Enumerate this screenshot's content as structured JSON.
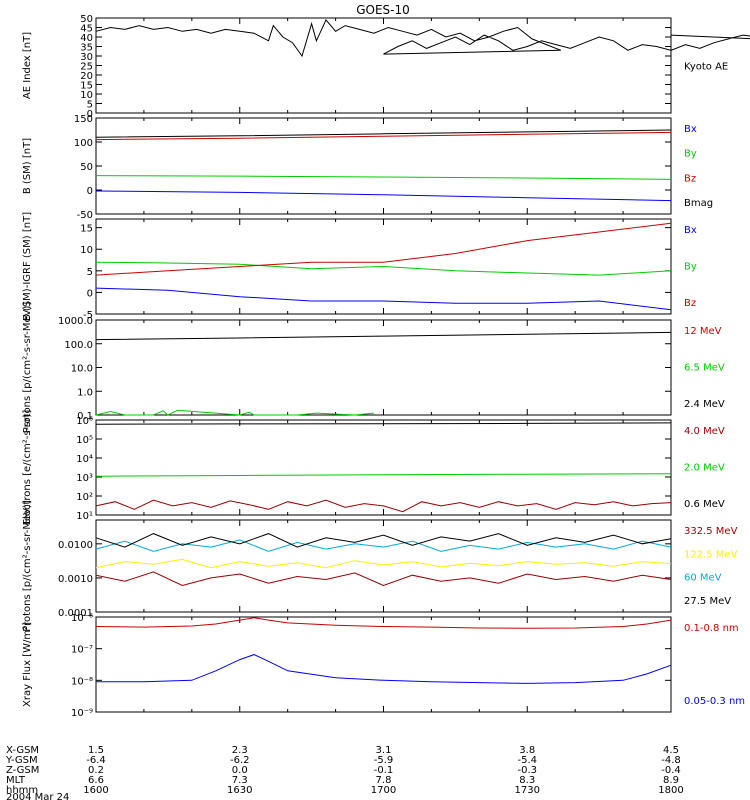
{
  "title": "GOES-10",
  "colors": {
    "black": "#000000",
    "blue": "#0000ff",
    "green": "#00cc00",
    "red": "#cc0000",
    "darkred": "#990000",
    "cyan": "#00aadd",
    "yellow": "#ffee00",
    "frame": "#000000"
  },
  "chart_data": [
    {
      "type": "line",
      "ylabel": "AE Index [nT]",
      "ylim": [
        0,
        50
      ],
      "scale": "linear",
      "yticks": [
        0,
        5,
        10,
        15,
        20,
        25,
        30,
        35,
        40,
        45,
        50
      ],
      "ytick_labels": [
        "0",
        "5",
        "10",
        "15",
        "20",
        "25",
        "30",
        "35",
        "40",
        "45",
        "50"
      ],
      "series": [
        {
          "name": "Kyoto AE",
          "color": "#000000",
          "x": [
            1600,
            1603,
            1606,
            1609,
            1612,
            1615,
            1618,
            1621,
            1624,
            1627,
            1630,
            1633,
            1636,
            1637,
            1639,
            1641,
            1643,
            1645,
            1646,
            1648,
            1650,
            1652,
            1655,
            1658,
            1661,
            1664,
            1667,
            1670,
            1673,
            1676,
            1679,
            1682,
            1685,
            1688,
            1691,
            1694,
            1697,
            1700,
            1703,
            1706,
            1709,
            1712,
            1715,
            1718,
            1721,
            1724,
            1727,
            1730,
            1733,
            1736,
            1739,
            1742,
            1745,
            1748,
            1751,
            1754,
            1757,
            1760,
            1763,
            1766,
            1769,
            1772,
            1775,
            1778,
            1781,
            1784,
            1787,
            1790,
            1793,
            1796,
            1800
          ],
          "y": [
            43,
            45,
            44,
            46,
            44,
            45,
            43,
            44,
            42,
            44,
            43,
            42,
            38,
            46,
            40,
            37,
            30,
            47,
            38,
            49,
            43,
            46,
            44,
            42,
            45,
            43,
            41,
            44,
            40,
            42,
            38,
            40,
            43,
            45,
            39,
            36,
            33,
            31,
            35,
            38,
            34,
            37,
            40,
            36,
            41,
            38,
            33,
            35,
            38,
            36,
            34,
            37,
            40,
            38,
            33,
            36,
            35,
            33,
            36,
            34,
            37,
            39,
            41,
            40,
            42,
            43,
            41,
            38,
            39,
            37,
            41
          ]
        }
      ]
    },
    {
      "type": "line",
      "ylabel": "B (SM) [nT]",
      "ylim": [
        -50,
        150
      ],
      "scale": "linear",
      "yticks": [
        -50,
        0,
        50,
        100,
        150
      ],
      "ytick_labels": [
        "-50",
        "0",
        "50",
        "100",
        "150"
      ],
      "series": [
        {
          "name": "Bx",
          "color": "#0000ff",
          "x": [
            1600,
            1630,
            1700,
            1730,
            1800
          ],
          "y": [
            -2,
            -5,
            -10,
            -16,
            -22
          ]
        },
        {
          "name": "By",
          "color": "#00cc00",
          "x": [
            1600,
            1630,
            1700,
            1730,
            1800
          ],
          "y": [
            30,
            29,
            27,
            25,
            22
          ]
        },
        {
          "name": "Bz",
          "color": "#cc0000",
          "x": [
            1600,
            1630,
            1700,
            1730,
            1800
          ],
          "y": [
            105,
            108,
            112,
            116,
            120
          ]
        },
        {
          "name": "Bmag",
          "color": "#000000",
          "x": [
            1600,
            1630,
            1700,
            1730,
            1800
          ],
          "y": [
            110,
            113,
            117,
            121,
            125
          ]
        }
      ]
    },
    {
      "type": "line",
      "ylabel": "B (SM)-IGRF (SM) [nT]",
      "ylim": [
        -5,
        17
      ],
      "scale": "linear",
      "yticks": [
        -5,
        0,
        5,
        10,
        15
      ],
      "ytick_labels": [
        "-5",
        "0",
        "5",
        "10",
        "15"
      ],
      "series": [
        {
          "name": "Bx",
          "color": "#0000ff",
          "x": [
            1600,
            1615,
            1630,
            1645,
            1700,
            1715,
            1730,
            1745,
            1800
          ],
          "y": [
            1,
            0.5,
            -1,
            -2,
            -2,
            -2.5,
            -2.5,
            -2,
            -4
          ]
        },
        {
          "name": "By",
          "color": "#00cc00",
          "x": [
            1600,
            1615,
            1630,
            1645,
            1700,
            1715,
            1730,
            1745,
            1800
          ],
          "y": [
            7,
            6.8,
            6.5,
            5.5,
            6,
            5,
            4.5,
            4,
            5
          ]
        },
        {
          "name": "Bz",
          "color": "#cc0000",
          "x": [
            1600,
            1615,
            1630,
            1645,
            1700,
            1715,
            1730,
            1745,
            1800
          ],
          "y": [
            4,
            5,
            6,
            7,
            7,
            9,
            12,
            14,
            16
          ]
        }
      ]
    },
    {
      "type": "line",
      "ylabel": "Protons [p/(cm²-s-sr-MeV)]",
      "ylim": [
        0.1,
        1000
      ],
      "scale": "log",
      "yticks": [
        0.1,
        1,
        10,
        100,
        1000
      ],
      "ytick_labels": [
        "0.1",
        "1.0",
        "10.0",
        "100.0",
        "1000.0"
      ],
      "series": [
        {
          "name": "12 MeV",
          "color": "#cc0000",
          "x": [],
          "y": []
        },
        {
          "name": "6.5 MeV",
          "color": "#00cc00",
          "x": [
            1600,
            1603,
            1606,
            1609,
            1612,
            1614,
            1615,
            1617,
            1630,
            1632,
            1633,
            1642,
            1646,
            1654,
            1658
          ],
          "y": [
            0.1,
            0.14,
            0.1,
            0.1,
            0.1,
            0.15,
            0.1,
            0.16,
            0.1,
            0.13,
            0.1,
            0.1,
            0.12,
            0.1,
            0.12
          ]
        },
        {
          "name": "2.4 MeV",
          "color": "#000000",
          "x": [
            1600,
            1630,
            1700,
            1730,
            1800
          ],
          "y": [
            150,
            175,
            210,
            250,
            300
          ]
        }
      ]
    },
    {
      "type": "line",
      "ylabel": "Electrons [e/(cm²-s-sr)]",
      "ylim": [
        10,
        1000000
      ],
      "scale": "log",
      "yticks": [
        10,
        100,
        1000,
        10000,
        100000,
        1000000
      ],
      "ytick_labels": [
        "10¹",
        "10²",
        "10³",
        "10⁴",
        "10⁵",
        "10⁶"
      ],
      "series": [
        {
          "name": "4.0 MeV",
          "color": "#990000",
          "x": [
            1600,
            1604,
            1608,
            1612,
            1616,
            1620,
            1624,
            1628,
            1632,
            1636,
            1640,
            1644,
            1648,
            1652,
            1656,
            1700,
            1704,
            1708,
            1712,
            1716,
            1720,
            1724,
            1728,
            1732,
            1736,
            1740,
            1744,
            1748,
            1752,
            1756,
            1800
          ],
          "y": [
            30,
            50,
            20,
            60,
            30,
            45,
            25,
            55,
            35,
            20,
            50,
            30,
            60,
            25,
            40,
            30,
            15,
            50,
            30,
            45,
            25,
            50,
            30,
            40,
            20,
            45,
            35,
            50,
            30,
            40,
            45
          ]
        },
        {
          "name": "2.0 MeV",
          "color": "#00cc00",
          "x": [
            1600,
            1630,
            1700,
            1730,
            1800
          ],
          "y": [
            1100,
            1200,
            1300,
            1400,
            1500
          ]
        },
        {
          "name": "0.6 MeV",
          "color": "#000000",
          "x": [
            1600,
            1630,
            1700,
            1730,
            1800
          ],
          "y": [
            600000,
            620000,
            640000,
            660000,
            700000
          ]
        }
      ]
    },
    {
      "type": "line",
      "ylabel": "Protons [p/(cm²-s-sr-MeV)]",
      "ylim": [
        0.0001,
        0.05
      ],
      "scale": "log",
      "yticks": [
        0.0001,
        0.001,
        0.01
      ],
      "ytick_labels": [
        "0.0001",
        "0.0010",
        "0.0100"
      ],
      "series": [
        {
          "name": "332.5 MeV",
          "color": "#990000",
          "x": [
            1600,
            1606,
            1612,
            1618,
            1624,
            1630,
            1636,
            1642,
            1648,
            1654,
            1700,
            1706,
            1712,
            1718,
            1724,
            1730,
            1736,
            1742,
            1748,
            1754,
            1800
          ],
          "y": [
            0.0012,
            0.0008,
            0.0015,
            0.0006,
            0.001,
            0.0013,
            0.0007,
            0.0011,
            0.0009,
            0.0014,
            0.0006,
            0.0012,
            0.0008,
            0.001,
            0.0007,
            0.0013,
            0.0009,
            0.0011,
            0.0008,
            0.0012,
            0.0009
          ]
        },
        {
          "name": "122.5 MeV",
          "color": "#ffee00",
          "x": [
            1600,
            1606,
            1612,
            1618,
            1624,
            1630,
            1636,
            1642,
            1648,
            1654,
            1700,
            1706,
            1712,
            1718,
            1724,
            1730,
            1736,
            1742,
            1748,
            1754,
            1800
          ],
          "y": [
            0.002,
            0.003,
            0.0025,
            0.0035,
            0.002,
            0.003,
            0.0022,
            0.0028,
            0.002,
            0.0032,
            0.0024,
            0.003,
            0.0021,
            0.0027,
            0.0023,
            0.003,
            0.0025,
            0.0028,
            0.0022,
            0.003,
            0.0026
          ]
        },
        {
          "name": "60 MeV",
          "color": "#00aadd",
          "x": [
            1600,
            1606,
            1612,
            1618,
            1624,
            1630,
            1636,
            1642,
            1648,
            1654,
            1700,
            1706,
            1712,
            1718,
            1724,
            1730,
            1736,
            1742,
            1748,
            1754,
            1800
          ],
          "y": [
            0.007,
            0.012,
            0.006,
            0.01,
            0.008,
            0.013,
            0.006,
            0.011,
            0.007,
            0.01,
            0.008,
            0.012,
            0.006,
            0.009,
            0.007,
            0.011,
            0.008,
            0.01,
            0.007,
            0.012,
            0.008
          ]
        },
        {
          "name": "27.5 MeV",
          "color": "#000000",
          "x": [
            1600,
            1606,
            1612,
            1618,
            1624,
            1630,
            1636,
            1642,
            1648,
            1654,
            1700,
            1706,
            1712,
            1718,
            1724,
            1730,
            1736,
            1742,
            1748,
            1754,
            1800
          ],
          "y": [
            0.015,
            0.008,
            0.02,
            0.009,
            0.016,
            0.01,
            0.02,
            0.008,
            0.015,
            0.011,
            0.018,
            0.009,
            0.016,
            0.012,
            0.02,
            0.009,
            0.015,
            0.011,
            0.018,
            0.01,
            0.014
          ]
        }
      ]
    },
    {
      "type": "line",
      "ylabel": "Xray Flux [W/m²]",
      "ylim": [
        1e-09,
        1e-06
      ],
      "scale": "log",
      "yticks": [
        1e-09,
        1e-08,
        1e-07,
        1e-06
      ],
      "ytick_labels": [
        "10⁻⁹",
        "10⁻⁸",
        "10⁻⁷",
        "10⁻⁶"
      ],
      "series": [
        {
          "name": "0.1-0.8 nm",
          "color": "#cc0000",
          "x": [
            1600,
            1610,
            1620,
            1625,
            1630,
            1633,
            1636,
            1640,
            1650,
            1700,
            1710,
            1720,
            1730,
            1740,
            1750,
            1755,
            1800
          ],
          "y": [
            5e-07,
            4.8e-07,
            5.2e-07,
            6e-07,
            8e-07,
            9.5e-07,
            8e-07,
            6.5e-07,
            5.5e-07,
            5e-07,
            4.8e-07,
            4.5e-07,
            4.4e-07,
            4.5e-07,
            5e-07,
            6e-07,
            8e-07
          ]
        },
        {
          "name": "0.05-0.3 nm",
          "color": "#0000ff",
          "x": [
            1600,
            1610,
            1620,
            1625,
            1630,
            1633,
            1636,
            1640,
            1650,
            1700,
            1710,
            1720,
            1730,
            1740,
            1750,
            1755,
            1800
          ],
          "y": [
            9e-09,
            9e-09,
            1e-08,
            2e-08,
            4.5e-08,
            6.5e-08,
            4e-08,
            2e-08,
            1.2e-08,
            1e-08,
            9e-09,
            8.5e-09,
            8e-09,
            8.5e-09,
            1e-08,
            1.6e-08,
            3e-08
          ]
        }
      ]
    }
  ],
  "xaxis": {
    "xlim": [
      1600,
      1800
    ],
    "ticks": [
      1600,
      1630,
      1700,
      1730,
      1800
    ],
    "minor_ticks": [
      1610,
      1620,
      1640,
      1650,
      1710,
      1720,
      1740,
      1750
    ],
    "row_labels": [
      "X-GSM",
      "Y-GSM",
      "Z-GSM",
      "MLT",
      "hhmm"
    ],
    "columns": [
      [
        "1.5",
        "-6.4",
        "0.2",
        "6.6",
        "1600"
      ],
      [
        "2.3",
        "-6.2",
        "0.0",
        "7.3",
        "1630"
      ],
      [
        "3.1",
        "-5.9",
        "-0.1",
        "7.8",
        "1700"
      ],
      [
        "3.8",
        "-5.4",
        "-0.3",
        "8.3",
        "1730"
      ],
      [
        "4.5",
        "-4.8",
        "-0.4",
        "8.9",
        "1800"
      ]
    ],
    "date_label": "2004 Mar 24"
  }
}
